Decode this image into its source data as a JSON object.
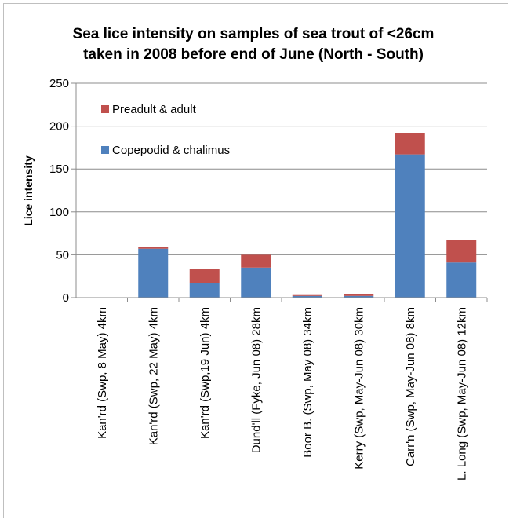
{
  "chart_data": {
    "type": "bar",
    "stacked": true,
    "title": "Sea lice intensity on samples of sea trout of <26cm taken in 2008 before end of June (North - South)",
    "title_lines": [
      "Sea lice intensity on samples of sea trout of <26cm",
      "taken in 2008 before end of June (North - South)"
    ],
    "ylabel": "Lice intensity",
    "xlabel": "",
    "ylim": [
      0,
      250
    ],
    "yticks": [
      0,
      50,
      100,
      150,
      200,
      250
    ],
    "grid": true,
    "legend_position": "top-left",
    "categories": [
      "Kan'rd (Swp, 8 May) 4km",
      "Kan'rd (Swp, 22 May) 4km",
      "Kan'rd (Swp,19 Jun) 4km",
      "Dund'll (Fyke, Jun 08) 28km",
      "Boor B. (Swp, May 08) 34km",
      "Kerry (Swp, May-Jun 08) 30km",
      "Carr'n (Swp, May-Jun 08) 8km",
      "L. Long (Swp, May-Jun 08) 12km"
    ],
    "series": [
      {
        "name": "Copepodid & chalimus",
        "color": "#4f81bd",
        "values": [
          0,
          57,
          17,
          35,
          2,
          2,
          167,
          41
        ]
      },
      {
        "name": "Preadult & adult",
        "color": "#c0504d",
        "values": [
          0,
          2,
          16,
          15,
          1,
          2,
          25,
          26
        ]
      }
    ]
  }
}
